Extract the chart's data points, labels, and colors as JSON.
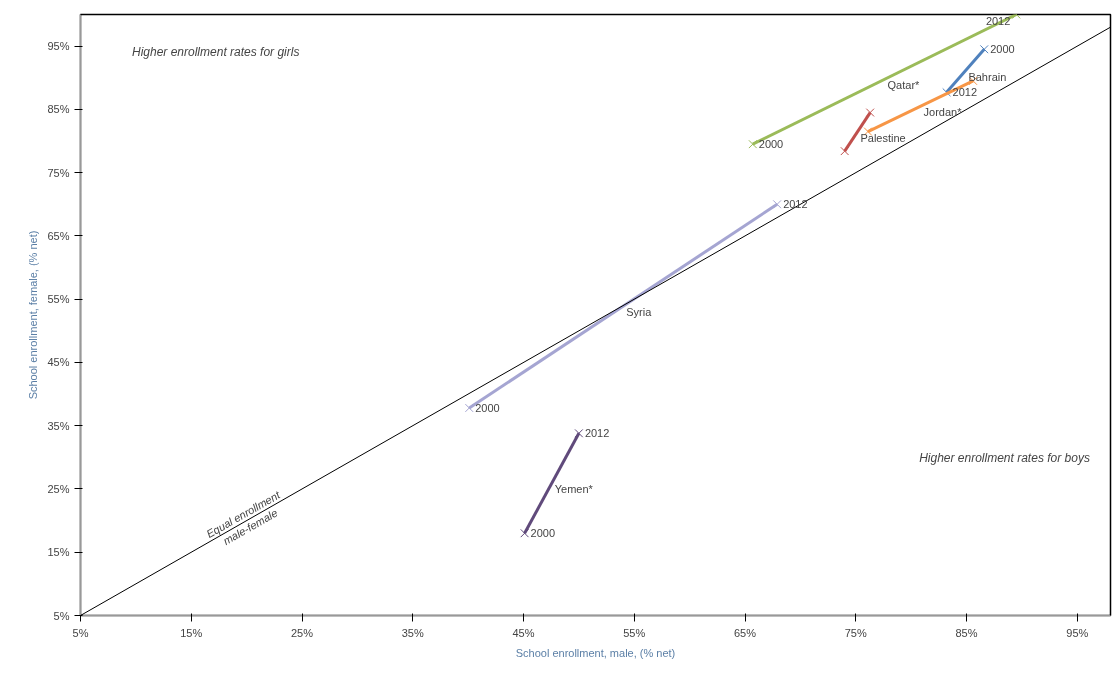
{
  "chart_data": {
    "type": "line",
    "xlabel": "School enrollment, male, (% net)",
    "ylabel": "School enrollment, female, (% net)",
    "xlim": [
      5,
      98
    ],
    "ylim": [
      5,
      100
    ],
    "xticks": [
      {
        "value": 5,
        "label": "5%"
      },
      {
        "value": 15,
        "label": "15%"
      },
      {
        "value": 25,
        "label": "25%"
      },
      {
        "value": 35,
        "label": "35%"
      },
      {
        "value": 45,
        "label": "45%"
      },
      {
        "value": 55,
        "label": "55%"
      },
      {
        "value": 65,
        "label": "65%"
      },
      {
        "value": 75,
        "label": "75%"
      },
      {
        "value": 85,
        "label": "85%"
      },
      {
        "value": 95,
        "label": "95%"
      }
    ],
    "yticks": [
      {
        "value": 5,
        "label": "5%"
      },
      {
        "value": 15,
        "label": "15%"
      },
      {
        "value": 25,
        "label": "25%"
      },
      {
        "value": 35,
        "label": "35%"
      },
      {
        "value": 45,
        "label": "45%"
      },
      {
        "value": 55,
        "label": "55%"
      },
      {
        "value": 65,
        "label": "65%"
      },
      {
        "value": 75,
        "label": "75%"
      },
      {
        "value": 85,
        "label": "85%"
      },
      {
        "value": 95,
        "label": "95%"
      }
    ],
    "grid": false,
    "legend": false,
    "marker": "cross",
    "line_style": "solid",
    "series": [
      {
        "name": "Qatar*",
        "color": "#9bbb59",
        "x": [
          65.7,
          89.5
        ],
        "values": [
          79.5,
          100
        ]
      },
      {
        "name": "Bahrain",
        "color": "#4f81bd",
        "x": [
          86.6,
          83.2
        ],
        "values": [
          94.5,
          87.7
        ]
      },
      {
        "name": "Jordan*",
        "color": "#f79646",
        "x": [
          85.6,
          76.1
        ],
        "values": [
          89.5,
          81.5
        ]
      },
      {
        "name": "Palestine",
        "color": "#c0504d",
        "x": [
          74.0,
          76.3
        ],
        "values": [
          78.4,
          84.5
        ]
      },
      {
        "name": "Syria",
        "color": "#a5a5d2",
        "x": [
          40.1,
          67.9
        ],
        "values": [
          37.8,
          70.0
        ]
      },
      {
        "name": "Yemen*",
        "color": "#604a7b",
        "x": [
          45.1,
          50.0
        ],
        "values": [
          18.0,
          33.8
        ]
      },
      {
        "color": "#000000",
        "x": [
          5,
          98
        ],
        "values": [
          5,
          98
        ],
        "marker": "none"
      }
    ],
    "annotations": [
      "Higher enrollment rates for girls",
      "Higher enrollment rates for boys",
      {
        "text": "Equal enrollment\nmale-female",
        "x": 20,
        "y": 20
      },
      {
        "text": "2000",
        "x": 65.7,
        "y": 79.5
      },
      {
        "text": "2012",
        "x": 89.5,
        "y": 100
      },
      {
        "text": "2000",
        "x": 86.6,
        "y": 94.5
      },
      {
        "text": "2012",
        "x": 83.2,
        "y": 87.7
      },
      {
        "text": "2000",
        "x": 40.1,
        "y": 37.8
      },
      {
        "text": "2012",
        "x": 67.9,
        "y": 70.0
      },
      {
        "text": "2000",
        "x": 45.1,
        "y": 18.0
      },
      {
        "text": "2012",
        "x": 50.0,
        "y": 33.8
      }
    ]
  }
}
